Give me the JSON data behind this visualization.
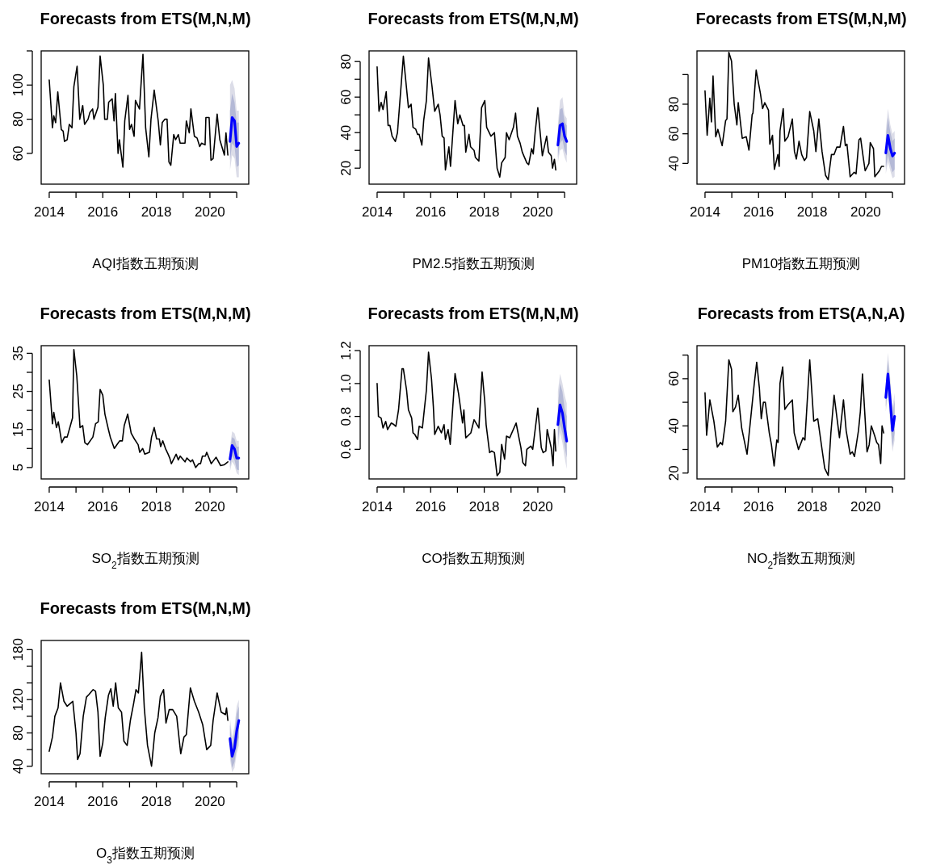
{
  "chart_data": [
    {
      "type": "line",
      "title": "Forecasts from ETS(M,N,M)",
      "xlabel": "AQI指数五期预测",
      "xlim": [
        2013.7,
        2021.45
      ],
      "xticks": [
        2014,
        {
          "value": 2015,
          "label": null
        },
        2016,
        {
          "value": 2017,
          "label": null
        },
        2018,
        {
          "value": 2019,
          "label": null
        },
        2020,
        {
          "value": 2021,
          "label": null
        }
      ],
      "ylim": [
        42,
        120
      ],
      "yticks": [
        60,
        80,
        100,
        {
          "value": 120,
          "label": null
        }
      ],
      "series": [
        {
          "color": "#000000",
          "x": [
            2014.0,
            2014.12,
            2014.17,
            2014.24,
            2014.32,
            2014.45,
            2014.52,
            2014.57,
            2014.67,
            2014.75,
            2014.85,
            2014.92,
            2015.04,
            2015.14,
            2015.25,
            2015.32,
            2015.45,
            2015.52,
            2015.62,
            2015.67,
            2015.82,
            2015.9,
            2016.02,
            2016.07,
            2016.17,
            2016.22,
            2016.35,
            2016.42,
            2016.47,
            2016.57,
            2016.62,
            2016.75,
            2016.82,
            2016.94,
            2017.0,
            2017.07,
            2017.17,
            2017.22,
            2017.37,
            2017.5,
            2017.6,
            2017.72,
            2017.8,
            2017.92,
            2018.07,
            2018.15,
            2018.22,
            2018.32,
            2018.4,
            2018.47,
            2018.54,
            2018.65,
            2018.72,
            2018.82,
            2018.89,
            2019.07,
            2019.12,
            2019.23,
            2019.29,
            2019.42,
            2019.52,
            2019.62,
            2019.69,
            2019.82,
            2019.85,
            2019.97,
            2020.04,
            2020.12,
            2020.27,
            2020.37,
            2020.54,
            2020.6,
            2020.67
          ],
          "values": [
            103,
            75,
            82,
            78,
            96,
            74,
            73,
            67,
            68,
            77,
            75,
            99,
            111,
            80,
            88,
            77,
            80,
            84,
            86,
            80,
            87,
            117,
            100,
            80,
            80,
            90,
            92,
            79,
            95,
            60,
            68,
            52,
            79,
            94,
            74,
            77,
            70,
            91,
            86,
            118,
            75,
            58,
            80,
            97,
            79,
            65,
            78,
            80,
            80,
            55,
            53,
            71,
            68,
            71,
            66,
            66,
            79,
            72,
            86,
            70,
            69,
            64,
            66,
            65,
            81,
            81,
            56,
            57,
            83,
            68,
            59,
            72,
            59
          ]
        },
        {
          "color": "#dcdde8",
          "x": [
            2020.75,
            2020.83,
            2020.92,
            2021.0,
            2021.08
          ],
          "values": [
            null,
            null,
            null,
            null,
            null
          ],
          "lower": [
            50,
            59,
            57,
            46,
            46
          ],
          "upper": [
            100,
            103,
            98,
            85,
            85
          ]
        },
        {
          "color": "#b4b9d6",
          "x": [
            2020.75,
            2020.83,
            2020.92,
            2021.0,
            2021.08
          ],
          "values": [
            null,
            null,
            null,
            null,
            null
          ],
          "lower": [
            56,
            66,
            64,
            52,
            53
          ],
          "upper": [
            85,
            95,
            90,
            78,
            78
          ]
        },
        {
          "color": "#0000ff",
          "x": [
            2020.75,
            2020.83,
            2020.92,
            2021.0,
            2021.08
          ],
          "values": [
            67,
            81,
            79,
            64,
            66
          ]
        }
      ]
    },
    {
      "type": "line",
      "title": "Forecasts from ETS(M,N,M)",
      "xlabel": "PM2.5指数五期预测",
      "xlim": [
        2013.7,
        2021.45
      ],
      "xticks": [
        2014,
        {
          "value": 2015,
          "label": null
        },
        2016,
        {
          "value": 2017,
          "label": null
        },
        2018,
        {
          "value": 2019,
          "label": null
        },
        2020,
        {
          "value": 2021,
          "label": null
        }
      ],
      "ylim": [
        11,
        86
      ],
      "yticks": [
        20,
        {
          "value": 30,
          "label": null
        },
        40,
        {
          "value": 50,
          "label": null
        },
        60,
        {
          "value": 70,
          "label": null
        },
        80
      ],
      "series": [
        {
          "color": "#000000",
          "x": [
            2014.0,
            2014.07,
            2014.15,
            2014.22,
            2014.34,
            2014.41,
            2014.48,
            2014.56,
            2014.68,
            2014.76,
            2014.98,
            2015.17,
            2015.27,
            2015.34,
            2015.44,
            2015.51,
            2015.57,
            2015.67,
            2015.74,
            2015.84,
            2015.92,
            2016.05,
            2016.15,
            2016.28,
            2016.35,
            2016.43,
            2016.5,
            2016.55,
            2016.68,
            2016.74,
            2016.91,
            2017.01,
            2017.09,
            2017.21,
            2017.26,
            2017.31,
            2017.43,
            2017.49,
            2017.62,
            2017.67,
            2017.8,
            2017.9,
            2018.02,
            2018.09,
            2018.25,
            2018.38,
            2018.48,
            2018.58,
            2018.65,
            2018.78,
            2018.83,
            2018.93,
            2019.09,
            2019.17,
            2019.24,
            2019.34,
            2019.42,
            2019.59,
            2019.66,
            2019.77,
            2019.83,
            2019.9,
            2020.0,
            2020.17,
            2020.33,
            2020.4,
            2020.5,
            2020.55,
            2020.62,
            2020.67
          ],
          "values": [
            77,
            52,
            57,
            53,
            63,
            44,
            44,
            38,
            35,
            40,
            83,
            54,
            56,
            43,
            42,
            39,
            39,
            33,
            47,
            58,
            82,
            66,
            52,
            56,
            50,
            38,
            37,
            19,
            32,
            21,
            58,
            45,
            50,
            44,
            44,
            29,
            39,
            32,
            30,
            26,
            24,
            54,
            58,
            43,
            38,
            40,
            20,
            15,
            23,
            26,
            40,
            36,
            43,
            51,
            38,
            34,
            29,
            23,
            22,
            31,
            28,
            40,
            54,
            27,
            38,
            29,
            27,
            20,
            25,
            19
          ]
        },
        {
          "color": "#dcdde8",
          "x": [
            2020.75,
            2020.83,
            2020.92,
            2021.0,
            2021.08
          ],
          "values": [
            null,
            null,
            null,
            null,
            null
          ],
          "lower": [
            23,
            30,
            31,
            26,
            23
          ],
          "upper": [
            45,
            58,
            60,
            50,
            48
          ]
        },
        {
          "color": "#b4b9d6",
          "x": [
            2020.75,
            2020.83,
            2020.92,
            2021.0,
            2021.08
          ],
          "values": [
            null,
            null,
            null,
            null,
            null
          ],
          "lower": [
            26,
            34,
            36,
            30,
            27
          ],
          "upper": [
            41,
            53,
            54,
            46,
            44
          ]
        },
        {
          "color": "#0000ff",
          "x": [
            2020.75,
            2020.83,
            2020.92,
            2021.0,
            2021.08
          ],
          "values": [
            33,
            44,
            45,
            38,
            35
          ]
        }
      ]
    },
    {
      "type": "line",
      "title": "Forecasts from ETS(M,N,M)",
      "xlabel": "PM10指数五期预测",
      "xlim": [
        2013.7,
        2021.45
      ],
      "xticks": [
        2014,
        {
          "value": 2015,
          "label": null
        },
        2016,
        {
          "value": 2017,
          "label": null
        },
        2018,
        {
          "value": 2019,
          "label": null
        },
        2020,
        {
          "value": 2021,
          "label": null
        }
      ],
      "ylim": [
        26,
        116
      ],
      "yticks": [
        40,
        60,
        80,
        {
          "value": 100,
          "label": null
        }
      ],
      "series": [
        {
          "color": "#000000",
          "x": [
            2014.0,
            2014.08,
            2014.18,
            2014.24,
            2014.3,
            2014.4,
            2014.48,
            2014.64,
            2014.77,
            2014.82,
            2014.89,
            2014.99,
            2015.09,
            2015.19,
            2015.24,
            2015.39,
            2015.54,
            2015.64,
            2015.76,
            2015.79,
            2015.91,
            2016.07,
            2016.15,
            2016.23,
            2016.37,
            2016.42,
            2016.52,
            2016.59,
            2016.72,
            2016.77,
            2016.8,
            2016.92,
            2016.98,
            2017.1,
            2017.26,
            2017.34,
            2017.41,
            2017.51,
            2017.61,
            2017.71,
            2017.79,
            2017.91,
            2018.06,
            2018.14,
            2018.25,
            2018.37,
            2018.5,
            2018.6,
            2018.72,
            2018.82,
            2018.92,
            2019.04,
            2019.17,
            2019.24,
            2019.3,
            2019.42,
            2019.57,
            2019.64,
            2019.75,
            2019.81,
            2019.9,
            2019.98,
            2020.12,
            2020.17,
            2020.29,
            2020.34,
            2020.51,
            2020.59,
            2020.67
          ],
          "values": [
            89,
            59,
            84,
            68,
            99,
            58,
            63,
            52,
            69,
            70,
            115,
            109,
            80,
            66,
            81,
            57,
            58,
            49,
            73,
            74,
            103,
            87,
            77,
            81,
            76,
            53,
            59,
            36,
            46,
            38,
            62,
            77,
            55,
            58,
            70,
            48,
            43,
            55,
            46,
            42,
            44,
            75,
            62,
            48,
            70,
            48,
            32,
            29,
            46,
            46,
            51,
            51,
            65,
            52,
            53,
            31,
            34,
            33,
            56,
            57,
            45,
            35,
            40,
            54,
            50,
            31,
            35,
            38,
            38
          ]
        },
        {
          "color": "#dcdde8",
          "x": [
            2020.75,
            2020.83,
            2020.92,
            2021.0,
            2021.08
          ],
          "values": [
            null,
            null,
            null,
            null,
            null
          ],
          "lower": [
            33,
            41,
            35,
            30,
            31
          ],
          "upper": [
            62,
            77,
            66,
            60,
            62
          ]
        },
        {
          "color": "#b4b9d6",
          "x": [
            2020.75,
            2020.83,
            2020.92,
            2021.0,
            2021.08
          ],
          "values": [
            null,
            null,
            null,
            null,
            null
          ],
          "lower": [
            37,
            46,
            39,
            34,
            36
          ],
          "upper": [
            57,
            71,
            61,
            55,
            57
          ]
        },
        {
          "color": "#0000ff",
          "x": [
            2020.75,
            2020.83,
            2020.92,
            2021.0,
            2021.08
          ],
          "values": [
            47,
            59,
            50,
            45,
            47
          ]
        }
      ]
    },
    {
      "type": "line",
      "title": "Forecasts from ETS(M,N,M)",
      "xlabel": "SO$_{2}$指数五期预测",
      "xlim": [
        2013.7,
        2021.45
      ],
      "xticks": [
        2014,
        {
          "value": 2015,
          "label": null
        },
        2016,
        {
          "value": 2017,
          "label": null
        },
        2018,
        {
          "value": 2019,
          "label": null
        },
        2020,
        {
          "value": 2021,
          "label": null
        }
      ],
      "ylim": [
        2,
        37
      ],
      "yticks": [
        5,
        {
          "value": 10,
          "label": null
        },
        15,
        {
          "value": 20,
          "label": null
        },
        25,
        {
          "value": 30,
          "label": null
        },
        35
      ],
      "series": [
        {
          "color": "#000000",
          "x": [
            2014.0,
            2014.12,
            2014.17,
            2014.27,
            2014.34,
            2014.47,
            2014.57,
            2014.67,
            2014.79,
            2014.87,
            2014.92,
            2015.03,
            2015.15,
            2015.25,
            2015.33,
            2015.43,
            2015.63,
            2015.73,
            2015.83,
            2015.9,
            2016.0,
            2016.08,
            2016.21,
            2016.28,
            2016.43,
            2016.53,
            2016.63,
            2016.73,
            2016.8,
            2016.93,
            2017.06,
            2017.18,
            2017.32,
            2017.38,
            2017.49,
            2017.57,
            2017.74,
            2017.82,
            2017.92,
            2018.01,
            2018.11,
            2018.16,
            2018.24,
            2018.34,
            2018.44,
            2018.5,
            2018.56,
            2018.74,
            2018.82,
            2018.89,
            2019.07,
            2019.14,
            2019.28,
            2019.35,
            2019.47,
            2019.58,
            2019.65,
            2019.72,
            2019.83,
            2019.88,
            2020.05,
            2020.23,
            2020.4,
            2020.53,
            2020.67
          ],
          "values": [
            28,
            16.5,
            19.5,
            15.5,
            17,
            11.5,
            13,
            13,
            16,
            18,
            36,
            29,
            15.5,
            16,
            11.5,
            11,
            13,
            16.5,
            17,
            25.5,
            24,
            19,
            15,
            13,
            10,
            11,
            12,
            12,
            16,
            19,
            14,
            12.5,
            11,
            9,
            10,
            8.5,
            9,
            13,
            15.5,
            12.5,
            12.5,
            10.5,
            12,
            10,
            8.5,
            7.5,
            6,
            8.5,
            7,
            8,
            6.5,
            7.5,
            6.5,
            7,
            5,
            6,
            6,
            8,
            8,
            9,
            6,
            7.7,
            5.5,
            5.7,
            6.5
          ]
        },
        {
          "color": "#dcdde8",
          "x": [
            2020.75,
            2020.83,
            2020.92,
            2021.0,
            2021.08
          ],
          "values": [
            null,
            null,
            null,
            null,
            null
          ],
          "lower": [
            4,
            6.5,
            5.5,
            3.5,
            3
          ],
          "upper": [
            10.5,
            14.5,
            14,
            12,
            12
          ]
        },
        {
          "color": "#b4b9d6",
          "x": [
            2020.75,
            2020.83,
            2020.92,
            2021.0,
            2021.08
          ],
          "values": [
            null,
            null,
            null,
            null,
            null
          ],
          "lower": [
            5,
            8,
            7,
            4.5,
            4.3
          ],
          "upper": [
            9.5,
            13,
            12.5,
            10.5,
            10.5
          ]
        },
        {
          "color": "#0000ff",
          "x": [
            2020.75,
            2020.83,
            2020.92,
            2021.0,
            2021.08
          ],
          "values": [
            7.2,
            10.8,
            9.8,
            7.5,
            7.5
          ]
        }
      ]
    },
    {
      "type": "line",
      "title": "Forecasts from ETS(M,N,M)",
      "xlabel": "CO指数五期预测",
      "xlim": [
        2013.7,
        2021.45
      ],
      "xticks": [
        2014,
        {
          "value": 2015,
          "label": null
        },
        2016,
        {
          "value": 2017,
          "label": null
        },
        2018,
        {
          "value": 2019,
          "label": null
        },
        2020,
        {
          "value": 2021,
          "label": null
        }
      ],
      "ylim": [
        0.42,
        1.23
      ],
      "yticks": [
        0.6,
        0.8,
        {
          "value": 1,
          "label": "1.0"
        },
        1.2
      ],
      "series": [
        {
          "color": "#000000",
          "x": [
            2014.0,
            2014.05,
            2014.15,
            2014.22,
            2014.32,
            2014.39,
            2014.53,
            2014.63,
            2014.7,
            2014.8,
            2014.93,
            2014.98,
            2015.1,
            2015.17,
            2015.29,
            2015.34,
            2015.41,
            2015.51,
            2015.57,
            2015.69,
            2015.84,
            2015.92,
            2016.03,
            2016.1,
            2016.15,
            2016.28,
            2016.4,
            2016.5,
            2016.55,
            2016.65,
            2016.73,
            2016.91,
            2017.04,
            2017.19,
            2017.24,
            2017.31,
            2017.5,
            2017.62,
            2017.8,
            2017.92,
            2018.02,
            2018.07,
            2018.2,
            2018.28,
            2018.38,
            2018.48,
            2018.58,
            2018.65,
            2018.76,
            2018.83,
            2018.95,
            2019.19,
            2019.32,
            2019.37,
            2019.44,
            2019.54,
            2019.59,
            2019.74,
            2019.81,
            2020.0,
            2020.13,
            2020.2,
            2020.3,
            2020.35,
            2020.5,
            2020.57,
            2020.62,
            2020.67
          ],
          "values": [
            1.0,
            0.8,
            0.79,
            0.73,
            0.77,
            0.72,
            0.76,
            0.75,
            0.74,
            0.84,
            1.09,
            1.09,
            0.96,
            0.84,
            0.79,
            0.7,
            0.69,
            0.66,
            0.74,
            0.73,
            0.96,
            1.19,
            1.03,
            0.86,
            0.69,
            0.74,
            0.7,
            0.75,
            0.66,
            0.72,
            0.63,
            1.06,
            0.94,
            0.76,
            0.84,
            0.67,
            0.7,
            0.78,
            0.73,
            1.07,
            0.89,
            0.75,
            0.58,
            0.59,
            0.58,
            0.44,
            0.46,
            0.63,
            0.54,
            0.68,
            0.67,
            0.76,
            0.65,
            0.61,
            0.52,
            0.5,
            0.6,
            0.62,
            0.6,
            0.85,
            0.61,
            0.58,
            0.59,
            0.72,
            0.61,
            0.5,
            0.72,
            0.59
          ]
        },
        {
          "color": "#dcdde8",
          "x": [
            2020.75,
            2020.83,
            2020.92,
            2021.0,
            2021.08
          ],
          "values": [
            null,
            null,
            null,
            null,
            null
          ],
          "lower": [
            0.6,
            0.7,
            0.64,
            0.55,
            0.48
          ],
          "upper": [
            0.95,
            1.06,
            1.0,
            0.93,
            0.88
          ]
        },
        {
          "color": "#b4b9d6",
          "x": [
            2020.75,
            2020.83,
            2020.92,
            2021.0,
            2021.08
          ],
          "values": [
            null,
            null,
            null,
            null,
            null
          ],
          "lower": [
            0.65,
            0.75,
            0.7,
            0.62,
            0.55
          ],
          "upper": [
            0.86,
            1.0,
            0.95,
            0.85,
            0.8
          ]
        },
        {
          "color": "#0000ff",
          "x": [
            2020.75,
            2020.83,
            2020.92,
            2021.0,
            2021.08
          ],
          "values": [
            0.75,
            0.87,
            0.82,
            0.73,
            0.65
          ]
        }
      ]
    },
    {
      "type": "line",
      "title": "Forecasts from ETS(A,N,A)",
      "xlabel": "NO$_{2}$指数五期预测",
      "xlim": [
        2013.7,
        2021.45
      ],
      "xticks": [
        2014,
        {
          "value": 2015,
          "label": null
        },
        2016,
        {
          "value": 2017,
          "label": null
        },
        2018,
        {
          "value": 2019,
          "label": null
        },
        2020,
        {
          "value": 2021,
          "label": null
        }
      ],
      "ylim": [
        17.5,
        74
      ],
      "yticks": [
        20,
        {
          "value": 30,
          "label": null
        },
        40,
        {
          "value": 50,
          "label": null
        },
        60,
        {
          "value": 70,
          "label": null
        }
      ],
      "series": [
        {
          "color": "#000000",
          "x": [
            2014.0,
            2014.06,
            2014.18,
            2014.33,
            2014.46,
            2014.58,
            2014.65,
            2014.77,
            2014.89,
            2014.99,
            2015.04,
            2015.14,
            2015.24,
            2015.37,
            2015.57,
            2015.74,
            2015.84,
            2015.93,
            2016.03,
            2016.1,
            2016.18,
            2016.25,
            2016.4,
            2016.48,
            2016.58,
            2016.68,
            2016.73,
            2016.8,
            2016.9,
            2016.98,
            2017.1,
            2017.26,
            2017.33,
            2017.49,
            2017.66,
            2017.73,
            2017.91,
            2018.06,
            2018.21,
            2018.37,
            2018.47,
            2018.6,
            2018.7,
            2018.82,
            2019.02,
            2019.17,
            2019.27,
            2019.42,
            2019.5,
            2019.58,
            2019.73,
            2019.8,
            2019.88,
            2020.05,
            2020.13,
            2020.21,
            2020.33,
            2020.41,
            2020.48,
            2020.56,
            2020.61,
            2020.67
          ],
          "values": [
            54,
            36,
            51,
            42,
            31,
            33,
            32,
            42,
            68,
            64,
            46,
            48,
            53,
            39,
            28,
            47,
            58,
            67,
            56,
            43,
            50,
            50,
            37,
            32,
            23,
            34,
            33,
            58,
            65,
            47,
            49,
            51,
            37,
            30,
            35,
            34,
            68,
            42,
            43,
            30,
            22,
            19,
            37,
            53,
            35,
            51,
            38,
            28,
            29,
            27,
            38,
            46,
            62,
            29,
            32,
            40,
            36,
            33,
            32,
            24,
            40,
            37
          ]
        },
        {
          "color": "#dcdde8",
          "x": [
            2020.75,
            2020.83,
            2020.92,
            2021.0,
            2021.08
          ],
          "values": [
            null,
            null,
            null,
            null,
            null
          ],
          "lower": [
            46,
            53,
            40,
            29,
            34
          ],
          "upper": [
            58,
            71,
            60,
            48,
            54
          ]
        },
        {
          "color": "#b4b9d6",
          "x": [
            2020.75,
            2020.83,
            2020.92,
            2021.0,
            2021.08
          ],
          "values": [
            null,
            null,
            null,
            null,
            null
          ],
          "lower": [
            48,
            56,
            43,
            31,
            37
          ],
          "upper": [
            56,
            68,
            57,
            45,
            51
          ]
        },
        {
          "color": "#0000ff",
          "x": [
            2020.75,
            2020.83,
            2020.92,
            2021.0,
            2021.08
          ],
          "values": [
            52,
            62,
            50,
            38,
            44
          ]
        }
      ]
    },
    {
      "type": "line",
      "title": "Forecasts from ETS(M,N,M)",
      "xlabel": "O$_{3}$指数五期预测",
      "xlim": [
        2013.7,
        2021.45
      ],
      "xticks": [
        2014,
        {
          "value": 2015,
          "label": null
        },
        2016,
        {
          "value": 2017,
          "label": null
        },
        2018,
        {
          "value": 2019,
          "label": null
        },
        2020,
        {
          "value": 2021,
          "label": null
        }
      ],
      "ylim": [
        31,
        191
      ],
      "yticks": [
        40,
        {
          "value": 60,
          "label": null
        },
        80,
        {
          "value": 100,
          "label": null
        },
        120,
        {
          "value": 140,
          "label": null
        },
        {
          "value": 160,
          "label": null
        },
        180
      ],
      "series": [
        {
          "color": "#000000",
          "x": [
            2014.0,
            2014.12,
            2014.21,
            2014.33,
            2014.42,
            2014.55,
            2014.67,
            2014.88,
            2015.0,
            2015.06,
            2015.15,
            2015.27,
            2015.39,
            2015.48,
            2015.64,
            2015.73,
            2015.82,
            2015.9,
            2016.0,
            2016.09,
            2016.21,
            2016.3,
            2016.39,
            2016.48,
            2016.58,
            2016.7,
            2016.79,
            2016.91,
            2017.03,
            2017.15,
            2017.24,
            2017.33,
            2017.45,
            2017.55,
            2017.67,
            2017.82,
            2017.94,
            2018.06,
            2018.15,
            2018.27,
            2018.36,
            2018.48,
            2018.61,
            2018.76,
            2018.91,
            2019.03,
            2019.12,
            2019.27,
            2019.42,
            2019.58,
            2019.73,
            2019.88,
            2020.03,
            2020.12,
            2020.27,
            2020.42,
            2020.58,
            2020.62,
            2020.67
          ],
          "values": [
            58,
            75,
            100,
            110,
            140,
            118,
            112,
            118,
            80,
            48,
            55,
            100,
            123,
            126,
            132,
            130,
            105,
            52,
            68,
            98,
            125,
            133,
            112,
            140,
            110,
            105,
            70,
            65,
            95,
            115,
            132,
            128,
            177,
            110,
            65,
            40,
            80,
            98,
            124,
            132,
            92,
            108,
            108,
            100,
            55,
            75,
            78,
            134,
            118,
            105,
            90,
            60,
            65,
            95,
            128,
            105,
            102,
            110,
            95
          ]
        },
        {
          "color": "#dcdde8",
          "x": [
            2020.75,
            2020.83,
            2020.92,
            2021.0,
            2021.08
          ],
          "values": [
            null,
            null,
            null,
            null,
            null
          ],
          "lower": [
            48,
            33,
            38,
            55,
            65
          ],
          "upper": [
            98,
            75,
            88,
            112,
            120
          ]
        },
        {
          "color": "#b4b9d6",
          "x": [
            2020.75,
            2020.83,
            2020.92,
            2021.0,
            2021.08
          ],
          "values": [
            null,
            null,
            null,
            null,
            null
          ],
          "lower": [
            56,
            38,
            45,
            62,
            75
          ],
          "upper": [
            90,
            67,
            80,
            103,
            112
          ]
        },
        {
          "color": "#0000ff",
          "x": [
            2020.75,
            2020.83,
            2020.92,
            2021.0,
            2021.08
          ],
          "values": [
            73,
            52,
            62,
            82,
            95
          ]
        }
      ]
    }
  ]
}
